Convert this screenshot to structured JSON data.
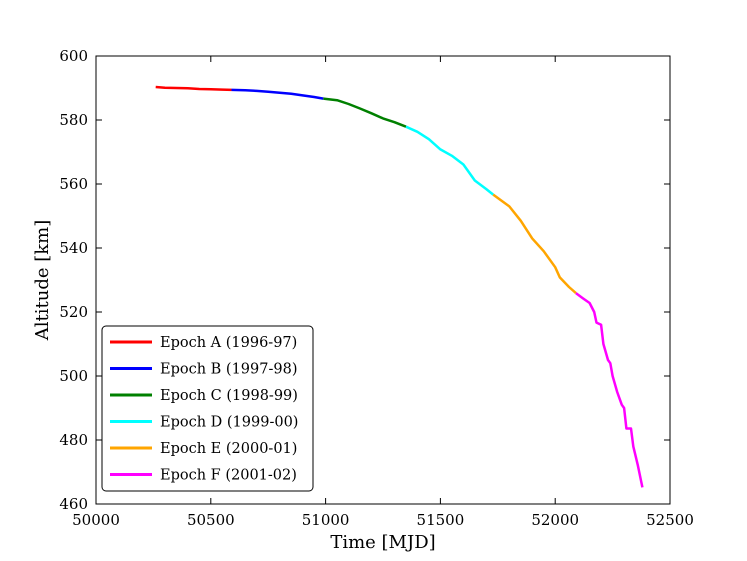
{
  "chart_data": {
    "type": "line",
    "title": "",
    "xlabel": "Time [MJD]",
    "ylabel": "Altitude [km]",
    "xlim": [
      50000,
      52500
    ],
    "ylim": [
      460,
      600
    ],
    "xticks": [
      50000,
      50500,
      51000,
      51500,
      52000,
      52500
    ],
    "yticks": [
      460,
      480,
      500,
      520,
      540,
      560,
      580,
      600
    ],
    "grid": false,
    "legend_position": "lower-left",
    "series": [
      {
        "name": "Epoch A (1996-97)",
        "color": "#ff0000",
        "x": [
          50260,
          50300,
          50350,
          50400,
          50450,
          50500,
          50550,
          50590
        ],
        "y": [
          590.3,
          590.1,
          590.0,
          589.9,
          589.7,
          589.6,
          589.5,
          589.4
        ]
      },
      {
        "name": "Epoch B (1997-98)",
        "color": "#0000ff",
        "x": [
          50590,
          50650,
          50700,
          50750,
          50800,
          50850,
          50900,
          50950,
          50990
        ],
        "y": [
          589.4,
          589.3,
          589.1,
          588.8,
          588.5,
          588.2,
          587.7,
          587.2,
          586.7
        ]
      },
      {
        "name": "Epoch C (1998-99)",
        "color": "#008000",
        "x": [
          50990,
          51050,
          51100,
          51150,
          51200,
          51250,
          51300,
          51350
        ],
        "y": [
          586.7,
          586.2,
          585.0,
          583.6,
          582.1,
          580.5,
          579.3,
          577.9
        ]
      },
      {
        "name": "Epoch D (1999-00)",
        "color": "#00ffff",
        "x": [
          51350,
          51400,
          51450,
          51500,
          51550,
          51600,
          51650,
          51700,
          51730
        ],
        "y": [
          577.9,
          576.3,
          574.0,
          570.8,
          568.8,
          566.1,
          561.1,
          558.4,
          556.7
        ]
      },
      {
        "name": "Epoch E (2000-01)",
        "color": "#ffa500",
        "x": [
          51730,
          51800,
          51850,
          51900,
          51950,
          52000,
          52020,
          52060,
          52090
        ],
        "y": [
          556.7,
          553.0,
          548.5,
          543.0,
          539.0,
          534.0,
          530.8,
          527.8,
          525.9
        ]
      },
      {
        "name": "Epoch F (2001-02)",
        "color": "#ff00ff",
        "x": [
          52090,
          52120,
          52150,
          52170,
          52180,
          52200,
          52210,
          52230,
          52240,
          52250,
          52270,
          52290,
          52300,
          52310,
          52330,
          52340,
          52360,
          52380
        ],
        "y": [
          525.9,
          524.3,
          522.8,
          520.0,
          516.7,
          516.0,
          510.0,
          505.0,
          504.0,
          500.0,
          495.0,
          491.0,
          490.0,
          483.6,
          483.6,
          478.0,
          472.0,
          465.2
        ]
      }
    ]
  }
}
